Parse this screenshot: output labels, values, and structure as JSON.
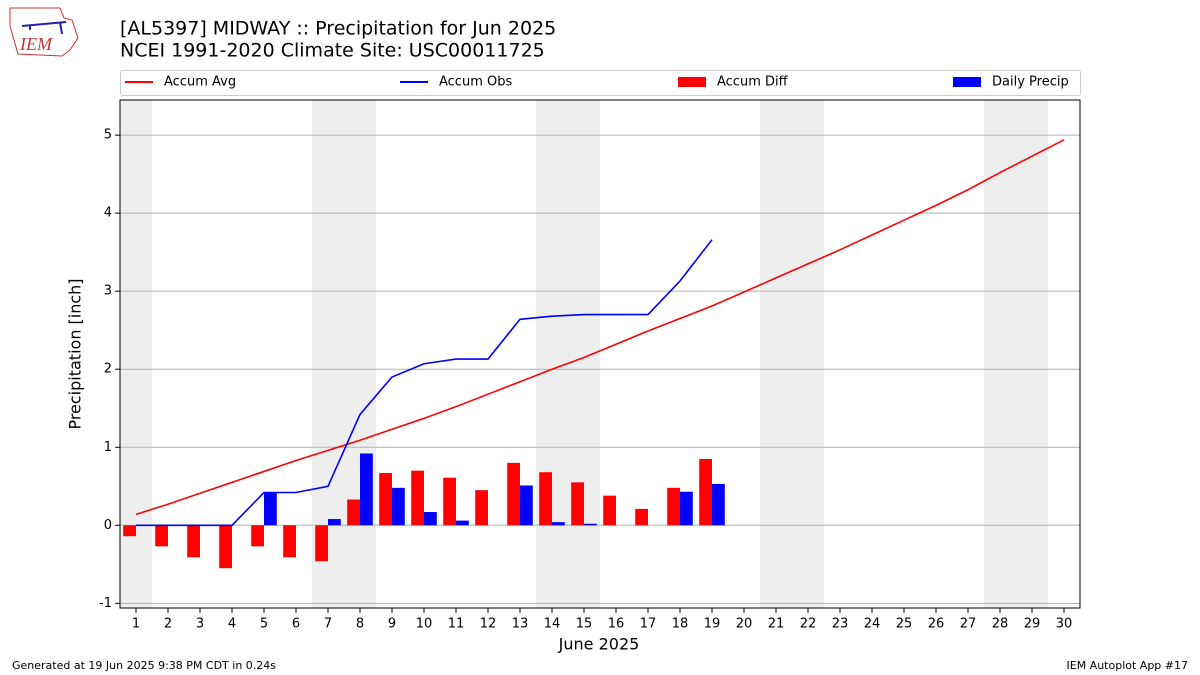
{
  "chart_data": {
    "type": "combo",
    "title": "[AL5397] MIDWAY :: Precipitation for Jun 2025",
    "subtitle": "NCEI 1991-2020 Climate Site: USC00011725",
    "xlabel": "June 2025",
    "ylabel": "Precipitation [inch]",
    "x": [
      1,
      2,
      3,
      4,
      5,
      6,
      7,
      8,
      9,
      10,
      11,
      12,
      13,
      14,
      15,
      16,
      17,
      18,
      19,
      20,
      21,
      22,
      23,
      24,
      25,
      26,
      27,
      28,
      29,
      30
    ],
    "xlim": [
      0.5,
      30.5
    ],
    "xticks": [
      1,
      2,
      3,
      4,
      5,
      6,
      7,
      8,
      9,
      10,
      11,
      12,
      13,
      14,
      15,
      16,
      17,
      18,
      19,
      20,
      21,
      22,
      23,
      24,
      25,
      26,
      27,
      28,
      29,
      30
    ],
    "ylim": [
      -1.06,
      5.45
    ],
    "yticks": [
      -1,
      0,
      1,
      2,
      3,
      4,
      5
    ],
    "grid": true,
    "shaded_spans": [
      [
        0.5,
        1.5
      ],
      [
        6.5,
        8.5
      ],
      [
        13.5,
        15.5
      ],
      [
        20.5,
        22.5
      ],
      [
        27.5,
        29.5
      ]
    ],
    "shade_color": "#eeeeee",
    "legend": "top",
    "series": [
      {
        "name": "Accum Avg",
        "kind": "line",
        "color": "#ff0000",
        "values": [
          0.14,
          0.27,
          0.41,
          0.55,
          0.69,
          0.83,
          0.96,
          1.09,
          1.23,
          1.37,
          1.52,
          1.68,
          1.84,
          2.0,
          2.15,
          2.32,
          2.49,
          2.65,
          2.81,
          2.99,
          3.17,
          3.35,
          3.53,
          3.72,
          3.91,
          4.1,
          4.3,
          4.52,
          4.73,
          4.94
        ]
      },
      {
        "name": "Accum Obs",
        "kind": "line",
        "color": "#0000ff",
        "values": [
          0,
          0,
          0,
          0,
          0.42,
          0.42,
          0.5,
          1.42,
          1.9,
          2.07,
          2.13,
          2.13,
          2.64,
          2.68,
          2.7,
          2.7,
          2.7,
          3.13,
          3.66,
          null,
          null,
          null,
          null,
          null,
          null,
          null,
          null,
          null,
          null,
          null
        ]
      },
      {
        "name": "Accum Diff",
        "kind": "bar",
        "offset": -0.4,
        "color": "#ff0000",
        "values": [
          -0.14,
          -0.27,
          -0.41,
          -0.55,
          -0.27,
          -0.41,
          -0.46,
          0.33,
          0.67,
          0.7,
          0.61,
          0.45,
          0.8,
          0.68,
          0.55,
          0.38,
          0.21,
          0.48,
          0.85,
          null,
          null,
          null,
          null,
          null,
          null,
          null,
          null,
          null,
          null,
          null
        ]
      },
      {
        "name": "Daily Precip",
        "kind": "bar",
        "offset": 0.4,
        "color": "#0000ff",
        "values": [
          0,
          0,
          0,
          0,
          0.42,
          0,
          0.08,
          0.92,
          0.48,
          0.17,
          0.06,
          0,
          0.51,
          0.04,
          0.02,
          0,
          0,
          0.43,
          0.53,
          null,
          null,
          null,
          null,
          null,
          null,
          null,
          null,
          null,
          null,
          null
        ]
      }
    ],
    "footer_left": "Generated at 19 Jun 2025 9:38 PM CDT in 0.24s",
    "footer_right": "IEM Autoplot App #17",
    "logo_text": "IEM"
  }
}
